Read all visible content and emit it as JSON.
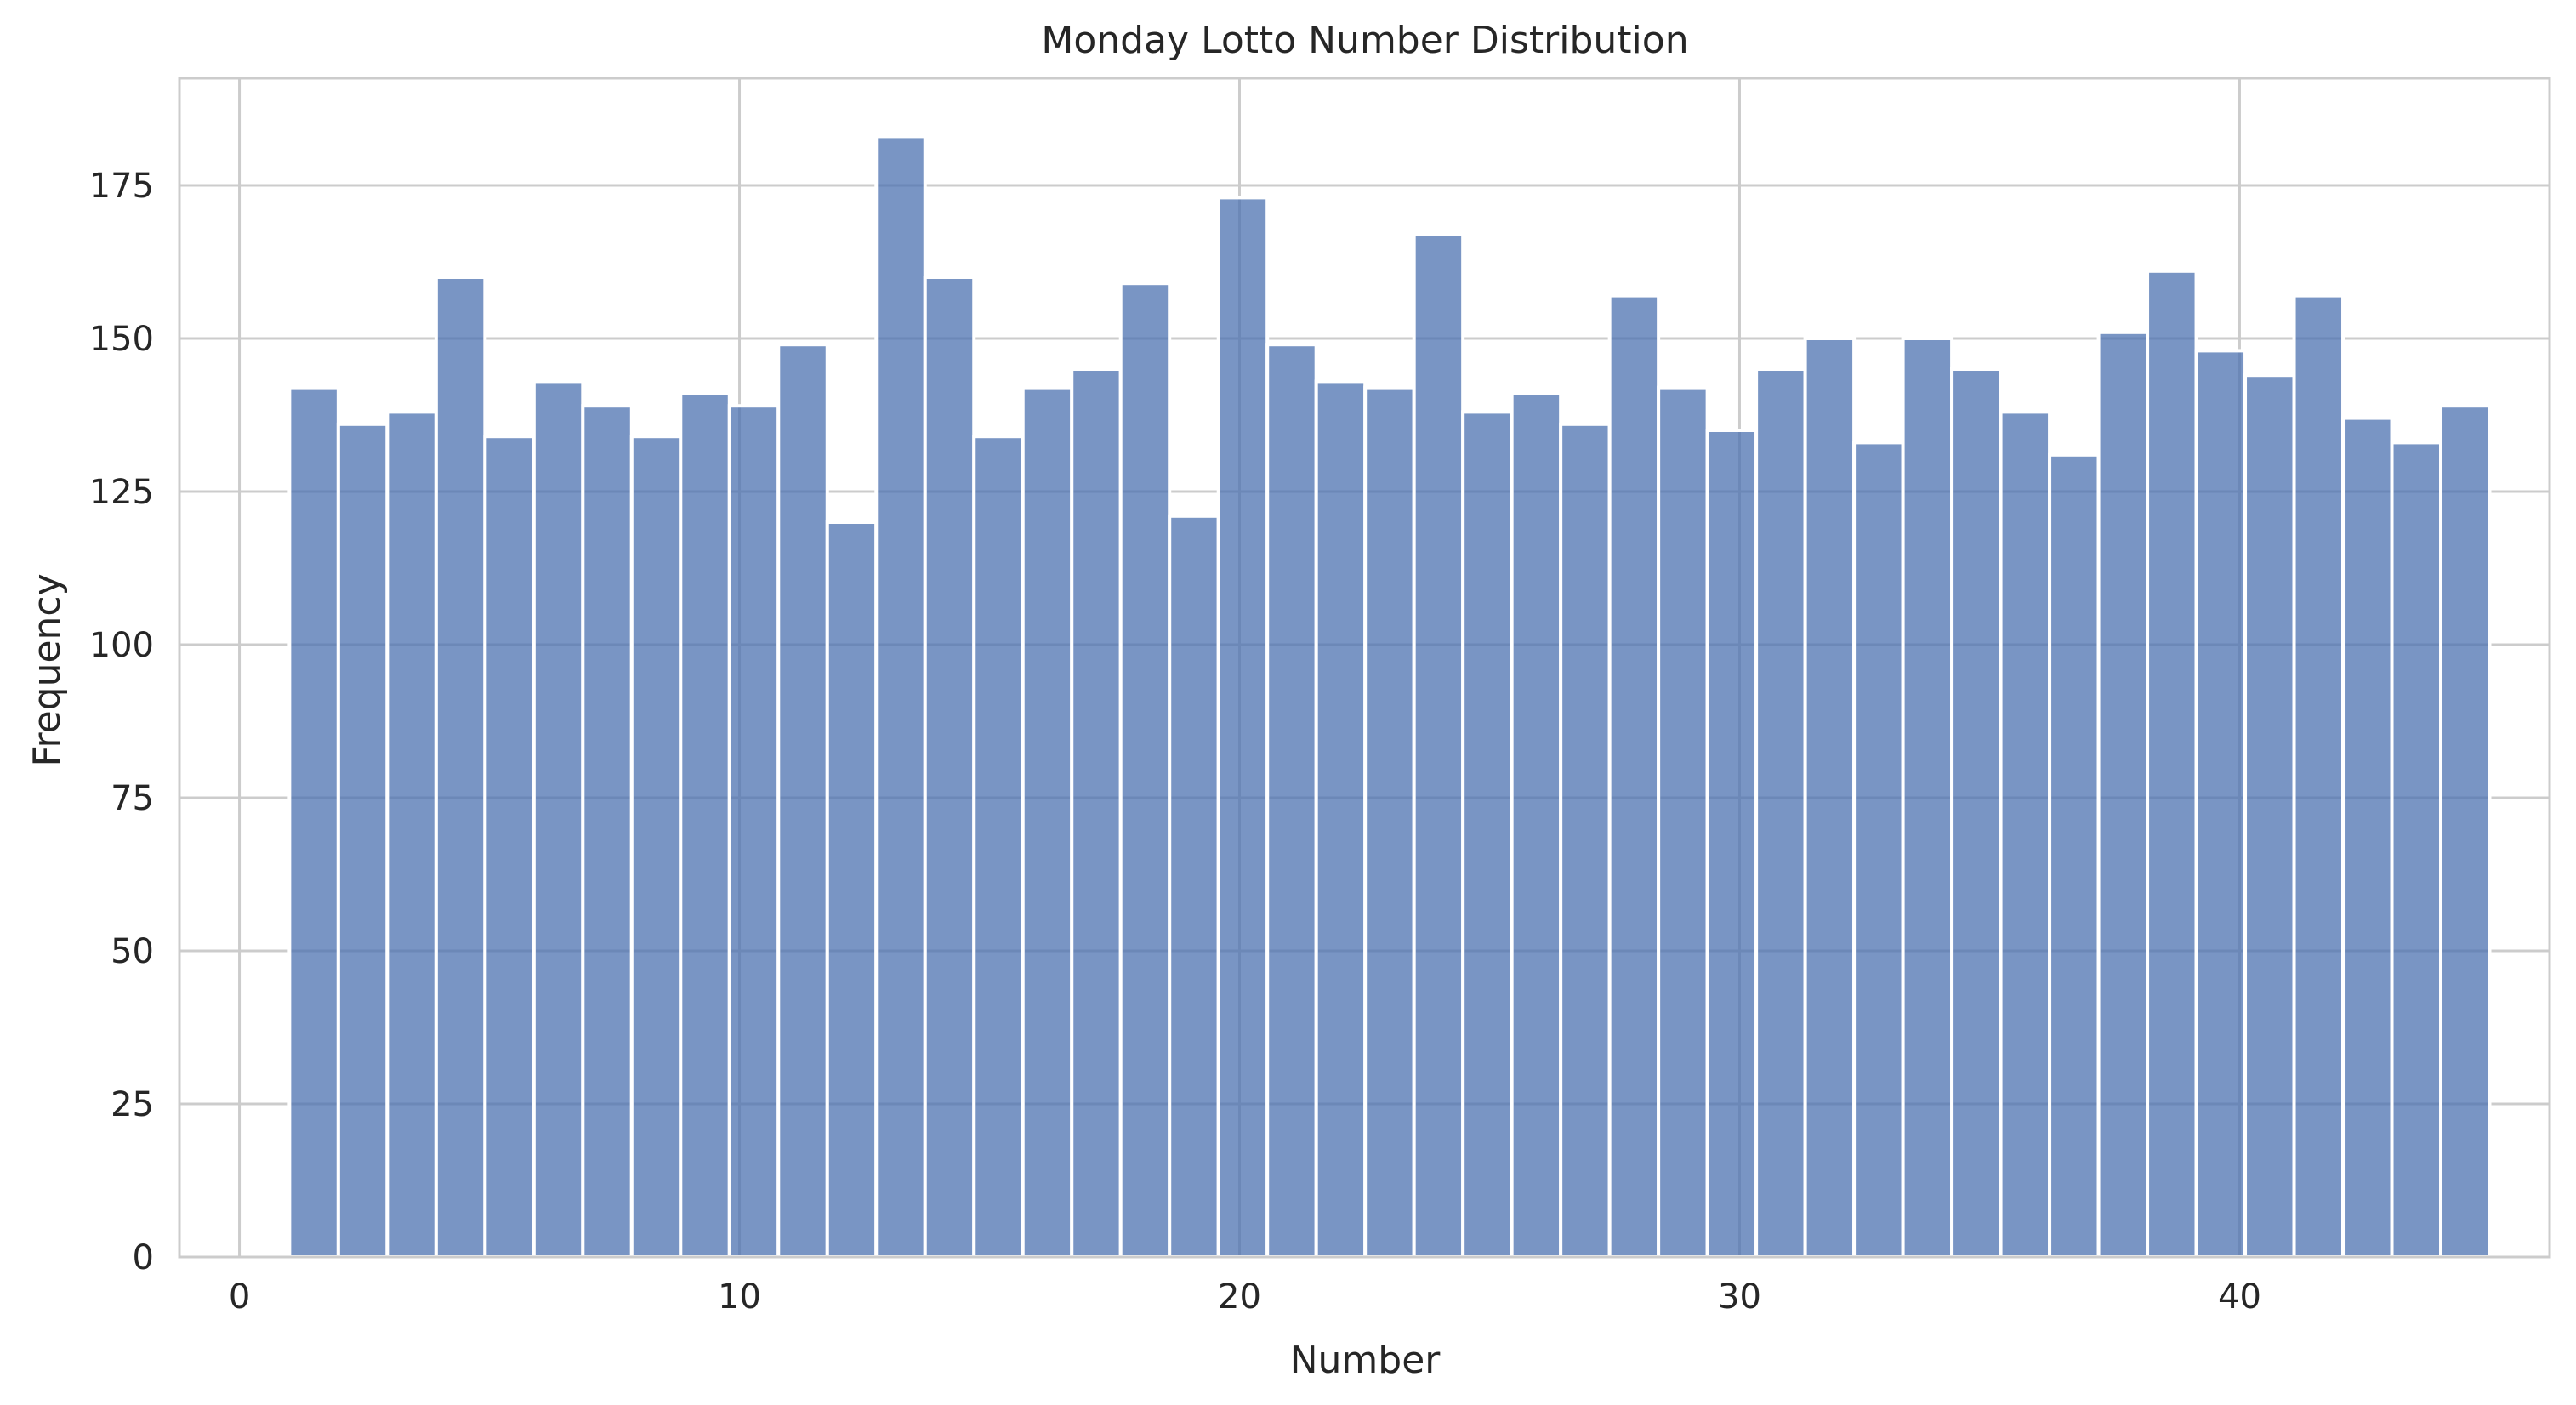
{
  "chart_data": {
    "type": "bar",
    "title": "Monday Lotto Number Distribution",
    "xlabel": "Number",
    "ylabel": "Frequency",
    "xlim": [
      -1.2,
      46.2
    ],
    "ylim": [
      0,
      192.5
    ],
    "xticks": [
      0,
      10,
      20,
      30,
      40
    ],
    "yticks": [
      0,
      25,
      50,
      75,
      100,
      125,
      150,
      175
    ],
    "grid": true,
    "bin_range": [
      1,
      45
    ],
    "bin_width": 0.9778,
    "values": [
      142,
      136,
      138,
      160,
      134,
      143,
      139,
      134,
      141,
      139,
      149,
      120,
      183,
      160,
      134,
      142,
      145,
      159,
      121,
      173,
      149,
      143,
      142,
      167,
      138,
      141,
      136,
      157,
      142,
      135,
      145,
      150,
      133,
      150,
      145,
      138,
      131,
      151,
      161,
      148,
      144,
      157,
      137,
      133,
      139
    ],
    "colors": {
      "bar": "#4c72b0",
      "bar_opacity": 0.75,
      "bar_edge": "#ffffff",
      "grid": "#cccccc",
      "axes_edge": "#cccccc",
      "text": "#262626"
    }
  }
}
